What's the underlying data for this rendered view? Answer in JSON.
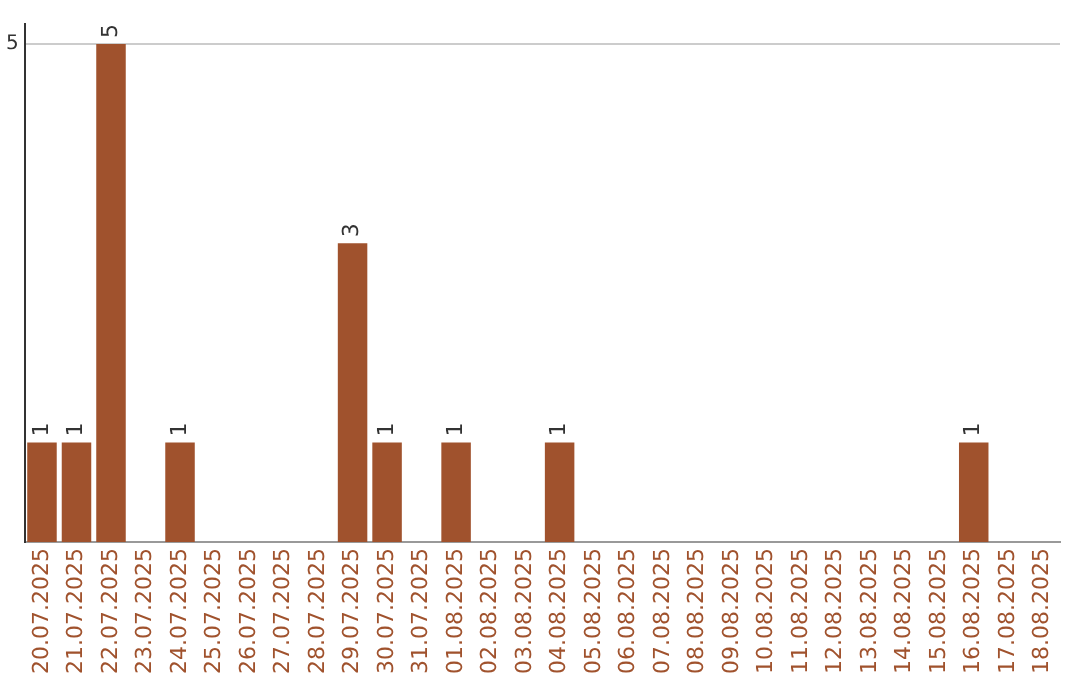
{
  "chart_data": {
    "type": "bar",
    "categories": [
      "20.07.2025",
      "21.07.2025",
      "22.07.2025",
      "23.07.2025",
      "24.07.2025",
      "25.07.2025",
      "26.07.2025",
      "27.07.2025",
      "28.07.2025",
      "29.07.2025",
      "30.07.2025",
      "31.07.2025",
      "01.08.2025",
      "02.08.2025",
      "03.08.2025",
      "04.08.2025",
      "05.08.2025",
      "06.08.2025",
      "07.08.2025",
      "08.08.2025",
      "09.08.2025",
      "10.08.2025",
      "11.08.2025",
      "12.08.2025",
      "13.08.2025",
      "14.08.2025",
      "15.08.2025",
      "16.08.2025",
      "17.08.2025",
      "18.08.2025"
    ],
    "values": [
      1,
      1,
      5,
      0,
      1,
      0,
      0,
      0,
      0,
      3,
      1,
      0,
      1,
      0,
      0,
      1,
      0,
      0,
      0,
      0,
      0,
      0,
      0,
      0,
      0,
      0,
      0,
      1,
      0,
      0
    ],
    "value_labels": [
      "1",
      "1",
      "5",
      null,
      "1",
      null,
      null,
      null,
      null,
      "3",
      "1",
      null,
      "1",
      null,
      null,
      "1",
      null,
      null,
      null,
      null,
      null,
      null,
      null,
      null,
      null,
      null,
      null,
      "1",
      null,
      null
    ],
    "color": "#a0522d",
    "ylim": [
      0,
      5.2
    ],
    "yticks": [
      5
    ],
    "grid": "y"
  }
}
